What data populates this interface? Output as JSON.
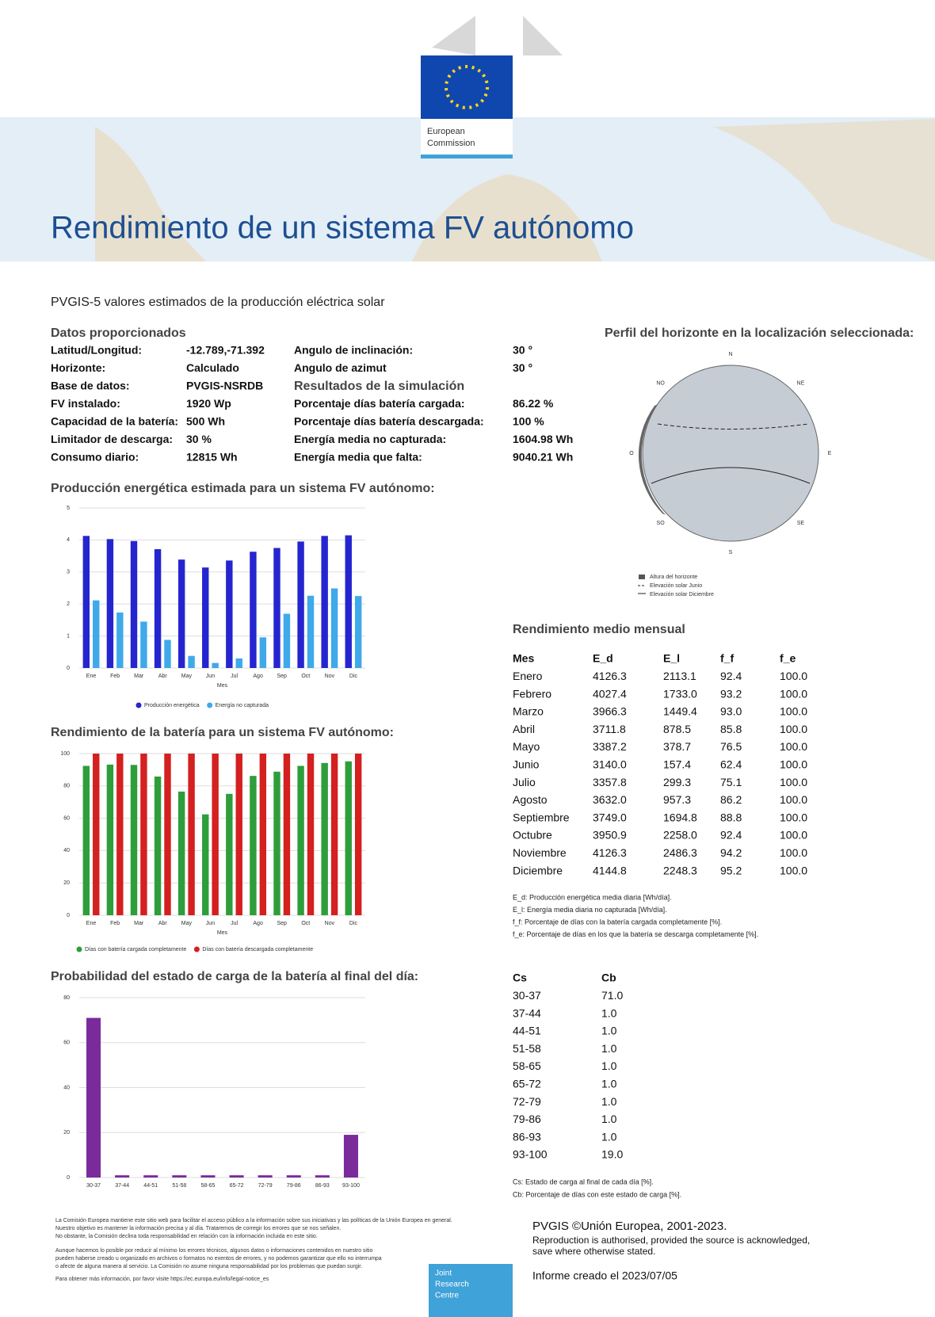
{
  "header": {
    "logo_text": [
      "European",
      "Commission"
    ],
    "title": "Rendimiento de un sistema FV autónomo"
  },
  "subtitle": "PVGIS-5 valores estimados de la producción eléctrica solar",
  "inputs": {
    "title": "Datos proporcionados",
    "rows": [
      [
        "Latitud/Longitud:",
        "-12.789,-71.392"
      ],
      [
        "Horizonte:",
        "Calculado"
      ],
      [
        "Base de datos:",
        "PVGIS-NSRDB"
      ],
      [
        "FV instalado:",
        "1920 Wp"
      ],
      [
        "Capacidad de la batería:",
        "500 Wh"
      ],
      [
        "Limitador de descarga:",
        "30 %"
      ],
      [
        "Consumo diario:",
        "12815 Wh"
      ]
    ]
  },
  "angles": {
    "rows": [
      [
        "Angulo de inclinación:",
        "30 °"
      ],
      [
        "Angulo de azimut",
        "30 °"
      ]
    ]
  },
  "results": {
    "title": "Resultados de la simulación",
    "rows": [
      [
        "Porcentaje días batería cargada:",
        "86.22 %"
      ],
      [
        "Porcentaje días batería descargada:",
        "100 %"
      ],
      [
        "Energía media no capturada:",
        "1604.98 Wh"
      ],
      [
        "Energía media que falta:",
        "9040.21 Wh"
      ]
    ]
  },
  "horizon": {
    "title": "Perfil del horizonte en la localización seleccionada:",
    "directions": [
      "N",
      "NE",
      "E",
      "SE",
      "S",
      "SO",
      "O",
      "NO"
    ],
    "legend": [
      "Altura del horizonte",
      "Elevación solar Junio",
      "Elevación solar Diciembre"
    ]
  },
  "chart_data": [
    {
      "type": "bar",
      "title": "Producción energética estimada para un sistema FV autónomo:",
      "xlabel": "Mes",
      "categories": [
        "Ene",
        "Feb",
        "Mar",
        "Abr",
        "May",
        "Jun",
        "Jul",
        "Ago",
        "Sep",
        "Oct",
        "Nov",
        "Dic"
      ],
      "series": [
        {
          "name": "Producción energética",
          "color": "#2525d0",
          "values": [
            4.1263,
            4.0274,
            3.9663,
            3.7118,
            3.3872,
            3.14,
            3.3578,
            3.632,
            3.749,
            3.9509,
            4.1263,
            4.1448
          ]
        },
        {
          "name": "Energía no capturada",
          "color": "#3fa9ea",
          "values": [
            2.1131,
            1.733,
            1.4494,
            0.8785,
            0.3787,
            0.1574,
            0.2993,
            0.9573,
            1.6948,
            2.258,
            2.4863,
            2.2483
          ]
        }
      ],
      "ylim": [
        0,
        5
      ],
      "yticks": [
        0,
        1,
        2,
        3,
        4,
        5
      ],
      "grid": true
    },
    {
      "type": "bar",
      "title": "Rendimiento de la batería para un sistema FV autónomo:",
      "xlabel": "Mes",
      "categories": [
        "Ene",
        "Feb",
        "Mar",
        "Abr",
        "May",
        "Jun",
        "Jul",
        "Ago",
        "Sep",
        "Oct",
        "Nov",
        "Dic"
      ],
      "series": [
        {
          "name": "Días con batería cargada completamente",
          "color": "#2e9e3a",
          "values": [
            92.4,
            93.2,
            93.0,
            85.8,
            76.5,
            62.4,
            75.1,
            86.2,
            88.8,
            92.4,
            94.2,
            95.2
          ]
        },
        {
          "name": "Días con batería descargada completamente",
          "color": "#d42020",
          "values": [
            100,
            100,
            100,
            100,
            100,
            100,
            100,
            100,
            100,
            100,
            100,
            100
          ]
        }
      ],
      "ylim": [
        0,
        100
      ],
      "yticks": [
        0,
        20,
        40,
        60,
        80,
        100
      ],
      "grid": true
    },
    {
      "type": "bar",
      "title": "Probabilidad del estado de carga de la batería al final del día:",
      "categories": [
        "30-37",
        "37-44",
        "44-51",
        "51-58",
        "58-65",
        "65-72",
        "72-79",
        "79-86",
        "86-93",
        "93-100"
      ],
      "series": [
        {
          "name": "Cb",
          "color": "#7b2a9c",
          "values": [
            71,
            1,
            1,
            1,
            1,
            1,
            1,
            1,
            1,
            19
          ]
        }
      ],
      "ylim": [
        0,
        80
      ],
      "yticks": [
        0,
        20,
        40,
        60,
        80
      ],
      "grid": true
    }
  ],
  "monthly": {
    "title": "Rendimiento medio mensual",
    "header": [
      "Mes",
      "E_d",
      "E_l",
      "f_f",
      "f_e"
    ],
    "rows": [
      [
        "Enero",
        "4126.3",
        "2113.1",
        "92.4",
        "100.0"
      ],
      [
        "Febrero",
        "4027.4",
        "1733.0",
        "93.2",
        "100.0"
      ],
      [
        "Marzo",
        "3966.3",
        "1449.4",
        "93.0",
        "100.0"
      ],
      [
        "Abril",
        "3711.8",
        "878.5",
        "85.8",
        "100.0"
      ],
      [
        "Mayo",
        "3387.2",
        "378.7",
        "76.5",
        "100.0"
      ],
      [
        "Junio",
        "3140.0",
        "157.4",
        "62.4",
        "100.0"
      ],
      [
        "Julio",
        "3357.8",
        "299.3",
        "75.1",
        "100.0"
      ],
      [
        "Agosto",
        "3632.0",
        "957.3",
        "86.2",
        "100.0"
      ],
      [
        "Septiembre",
        "3749.0",
        "1694.8",
        "88.8",
        "100.0"
      ],
      [
        "Octubre",
        "3950.9",
        "2258.0",
        "92.4",
        "100.0"
      ],
      [
        "Noviembre",
        "4126.3",
        "2486.3",
        "94.2",
        "100.0"
      ],
      [
        "Diciembre",
        "4144.8",
        "2248.3",
        "95.2",
        "100.0"
      ]
    ],
    "notes": [
      "E_d: Producción energética media diaria [Wh/día].",
      "E_l: Energía media diaria no capturada [Wh/día].",
      "f_f: Porcentaje de días con la batería cargada completamente [%].",
      "f_e: Porcentaje de días en los que la batería se descarga completamente [%]."
    ]
  },
  "charge": {
    "header": [
      "Cs",
      "Cb"
    ],
    "rows": [
      [
        "30-37",
        "71.0"
      ],
      [
        "37-44",
        "1.0"
      ],
      [
        "44-51",
        "1.0"
      ],
      [
        "51-58",
        "1.0"
      ],
      [
        "58-65",
        "1.0"
      ],
      [
        "65-72",
        "1.0"
      ],
      [
        "72-79",
        "1.0"
      ],
      [
        "79-86",
        "1.0"
      ],
      [
        "86-93",
        "1.0"
      ],
      [
        "93-100",
        "19.0"
      ]
    ],
    "notes": [
      "Cs: Estado de carga al final de cada día [%].",
      "Cb: Porcentaje de días con este estado de carga [%]."
    ]
  },
  "disclaimer": [
    "La Comisión Europea mantiene este sitio web para facilitar el acceso público a la información sobre sus iniciativas y las políticas de la Unión Europea en general.",
    "Nuestro objetivo es mantener la información precisa y al día. Trataremos de corregir los errores que se nos señalen.",
    "No obstante, la Comisión declina toda responsabilidad en relación con la información incluida en este sitio.",
    "Aunque hacemos lo posible por reducir al mínimo los errores técnicos, algunos datos o informaciones contenidos en nuestro sitio",
    "pueden haberse creado u organizado en archivos o formatos no exentos de errores, y no podemos garantizar que ello no interrumpa",
    "o afecte de alguna manera al servicio. La Comisión no asume ninguna responsabilidad por los problemas que puedan surgir.",
    "Para obtener más información, por favor visite https://ec.europa.eu/info/legal-notice_es"
  ],
  "jrc": [
    "Joint",
    "Research",
    "Centre"
  ],
  "footer": {
    "copyright": "PVGIS ©Unión Europea, 2001-2023.",
    "reproduction": [
      "Reproduction is authorised, provided the source is acknowledged,",
      "save where otherwise stated."
    ],
    "created": "Informe creado el 2023/07/05"
  }
}
